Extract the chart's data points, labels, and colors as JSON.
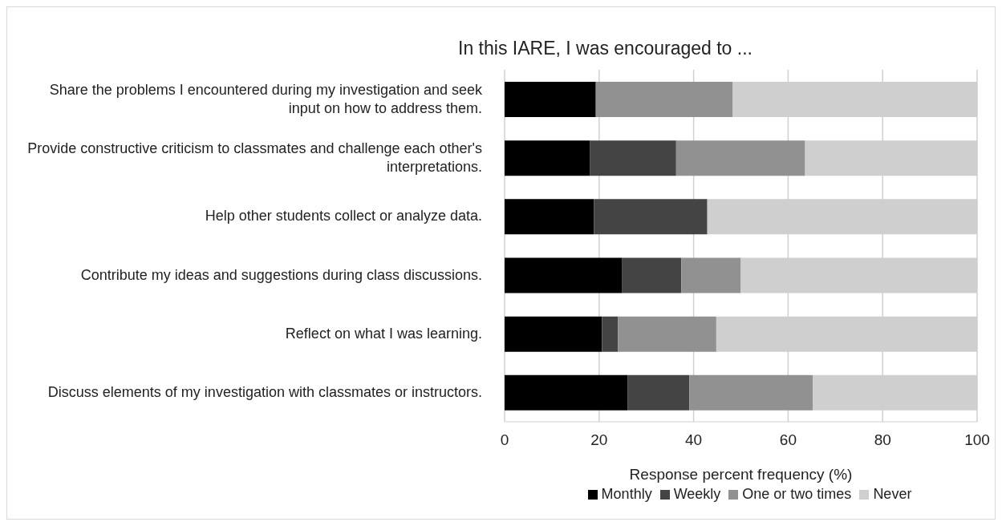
{
  "chart_data": {
    "type": "bar",
    "orientation": "horizontal",
    "stacked": true,
    "title": "In this IARE, I was encouraged to ...",
    "xlabel": "Response percent frequency (%)",
    "categories": [
      "Share the problems I encountered during my investigation and seek input on how to address them.",
      "Provide constructive criticism to classmates and challenge each other's interpretations.",
      "Help other students collect or analyze data.",
      "Contribute my ideas and suggestions during class discussions.",
      "Reflect on what I was learning.",
      "Discuss elements of my investigation with classmates or instructors."
    ],
    "series": [
      {
        "name": "Monthly",
        "color": "#000000",
        "values": [
          19.3,
          18.1,
          18.9,
          24.9,
          20.6,
          26.0
        ]
      },
      {
        "name": "Weekly",
        "color": "#444444",
        "values": [
          0,
          18.2,
          24.0,
          12.5,
          3.4,
          13.1
        ]
      },
      {
        "name": "One or two times",
        "color": "#919191",
        "values": [
          29.0,
          27.3,
          0,
          12.6,
          20.8,
          26.1
        ]
      },
      {
        "name": "Never",
        "color": "#cfcfcf",
        "values": [
          51.7,
          36.4,
          57.1,
          50.0,
          55.2,
          34.8
        ]
      }
    ],
    "xlim": [
      0,
      100
    ],
    "xticks": [
      0,
      20,
      40,
      60,
      80,
      100
    ],
    "grid": "x",
    "legend": "bottom"
  }
}
